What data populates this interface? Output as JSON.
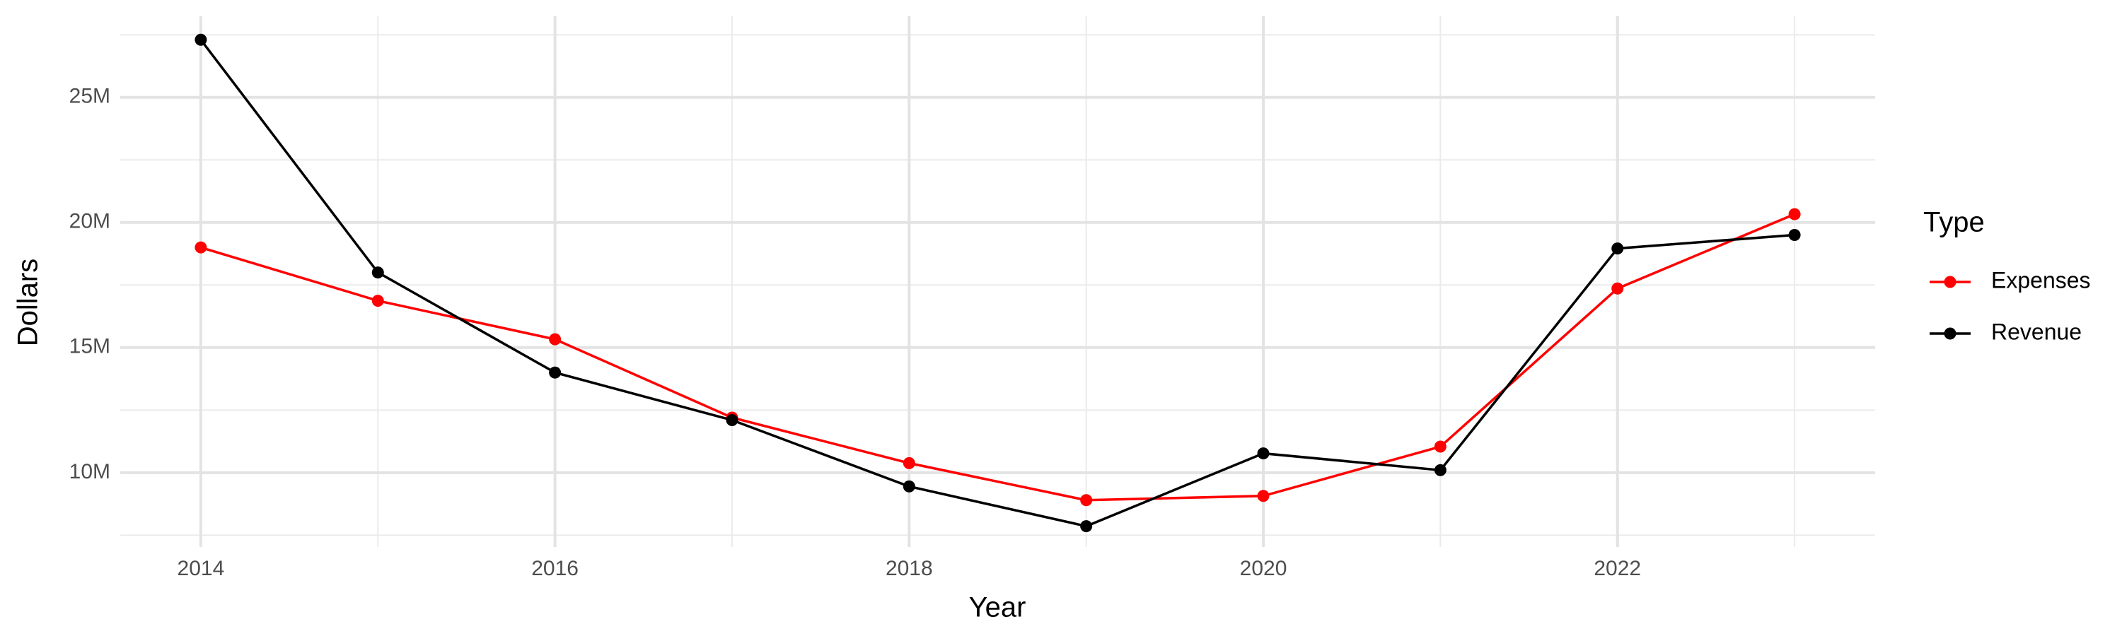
{
  "chart_data": {
    "type": "line",
    "x_label": "Year",
    "y_label": "Dollars",
    "legend_title": "Type",
    "legend_position": "right",
    "grid": true,
    "x": [
      2014,
      2015,
      2016,
      2017,
      2018,
      2019,
      2020,
      2021,
      2022,
      2023
    ],
    "series": [
      {
        "name": "Expenses",
        "color": "#ff0000",
        "values": [
          19000000,
          16870000,
          15330000,
          12200000,
          10380000,
          8900000,
          9070000,
          11040000,
          17360000,
          20330000
        ]
      },
      {
        "name": "Revenue",
        "color": "#000000",
        "values": [
          27300000,
          18000000,
          14000000,
          12100000,
          9450000,
          7860000,
          10770000,
          10100000,
          18960000,
          19500000
        ]
      }
    ],
    "xlim": [
      2013.545,
      2023.455
    ],
    "xticks": [
      2014,
      2016,
      2018,
      2020,
      2022
    ],
    "ylim": [
      7030000,
      28240000
    ],
    "yticks": [
      {
        "value": 10000000,
        "label": "10M"
      },
      {
        "value": 15000000,
        "label": "15M"
      },
      {
        "value": 20000000,
        "label": "20M"
      },
      {
        "value": 25000000,
        "label": "25M"
      }
    ]
  }
}
